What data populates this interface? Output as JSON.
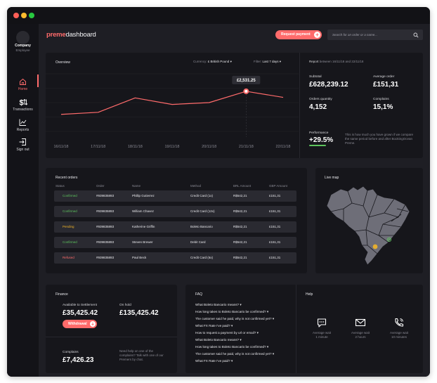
{
  "sidebar": {
    "company": "Company",
    "role": "Employee",
    "items": [
      {
        "label": "Home",
        "icon": "home-icon",
        "active": true
      },
      {
        "label": "Transactions",
        "icon": "dollar-arrows-icon"
      },
      {
        "label": "Reports",
        "icon": "bar-chart-icon"
      },
      {
        "label": "Sign out",
        "icon": "sign-out-icon"
      }
    ]
  },
  "header": {
    "logo_bold": "preme",
    "logo_rest": "dashboard",
    "request_payment_label": "Request payment",
    "search_placeholder": "Search for an order or a name..."
  },
  "overview": {
    "title": "Overview",
    "currency_label": "Currency:",
    "currency_value": "£ British Pound",
    "filter_label": "Filter:",
    "filter_value": "Last 7 days",
    "report_label": "Report",
    "report_range": "between 16/11/18 and 22/11/18",
    "subtotal_label": "Subtotal",
    "subtotal_value": "£628,239.12",
    "average_order_label": "Average order",
    "average_order_value": "£151,31",
    "orders_quantity_label": "Orders quantity",
    "orders_quantity_value": "4,152",
    "complains_label": "Complains",
    "complains_value": "15,1%",
    "performance_label": "Performance",
    "performance_value": "+29.5%",
    "performance_text": "This is how much you have grown if we compare the same period before and after BookingOcean Preme."
  },
  "chart_data": {
    "type": "line",
    "categories": [
      "16/11/18",
      "17/11/18",
      "18/11/18",
      "19/11/18",
      "20/11/18",
      "21/11/18",
      "22/11/18"
    ],
    "values": [
      1650,
      1730,
      2280,
      2030,
      2100,
      2531.25,
      2300
    ],
    "tooltip": "£2,531.25",
    "highlight_index": 5,
    "ylim": [
      1000,
      3200
    ],
    "grid": true,
    "line_color": "#ff6b6b"
  },
  "orders": {
    "title": "Recent orders",
    "headers": [
      "Status",
      "Order",
      "Name",
      "Method",
      "BRL Amount",
      "GBP Amount"
    ],
    "rows": [
      {
        "status": "Confirmed",
        "order": "#93983589З",
        "name": "Phillip Gutierrez",
        "method": "Credit Card (1x)",
        "brl": "R$542,21",
        "gbp": "£151,31"
      },
      {
        "status": "Confirmed",
        "order": "#93983589З",
        "name": "William Chavez",
        "method": "Credit Card (12x)",
        "brl": "R$542,21",
        "gbp": "£151,31"
      },
      {
        "status": "Pending",
        "order": "#93983589З",
        "name": "Katherine Griffin",
        "method": "Boleto Bancario",
        "brl": "R$542,21",
        "gbp": "£151,31"
      },
      {
        "status": "Confirmed",
        "order": "#93983589З",
        "name": "Steven Brewer",
        "method": "Debit Card",
        "brl": "R$542,21",
        "gbp": "£151,31"
      },
      {
        "status": "Refused",
        "order": "#93983589З",
        "name": "Paul Beck",
        "method": "Credit Card (6x)",
        "brl": "R$542,21",
        "gbp": "£151,31"
      }
    ]
  },
  "livemap": {
    "title": "Live map"
  },
  "finance": {
    "title": "Finance",
    "available_label": "Available to Settlement",
    "available_value": "£35,425.42",
    "onhold_label": "On hold",
    "onhold_value": "£135,425.42",
    "withdraw_label": "Withdrawal",
    "complains_label": "Complains",
    "complains_value": "£7,426.23",
    "help_text": "Need help on one of the complains? Talk with one of our Premers by chat."
  },
  "faq": {
    "title": "FAQ",
    "items": [
      "What Boleto Bancario means?",
      "How long takes to Boleto Bancario be confirmed?",
      "The customer said he paid, why is not confirmed yet?",
      "What FX Rate I've paid?",
      "How to request a payment by url or email?",
      "What Boleto Bancario means?",
      "How long takes to Boleto Bancario be confirmed?",
      "The customer said he paid, why is not confirmed yet?",
      "What FX Rate I've paid?"
    ]
  },
  "help": {
    "title": "Help",
    "items": [
      {
        "icon": "chat-icon",
        "line1": "Average wait",
        "line2": "1 minute"
      },
      {
        "icon": "mail-icon",
        "line1": "Average wait",
        "line2": "2 hours"
      },
      {
        "icon": "phone-icon",
        "line1": "Average wait",
        "line2": "10 minutes"
      }
    ]
  }
}
